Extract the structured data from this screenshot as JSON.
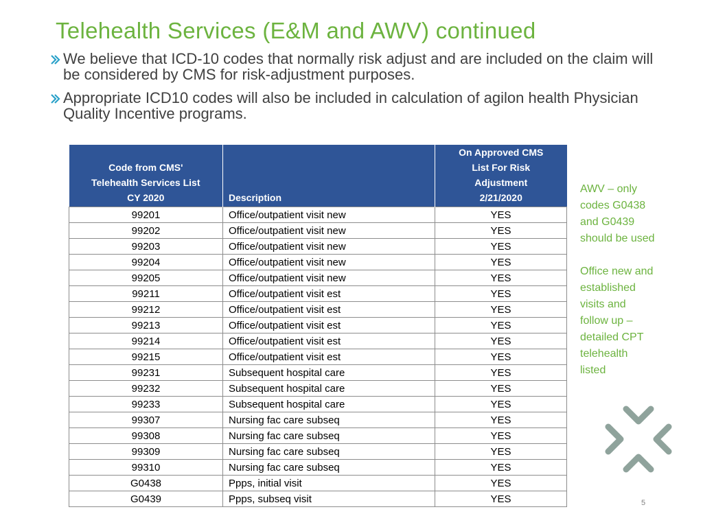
{
  "slide": {
    "title": "Telehealth Services (E&M and AWV) continued",
    "bullets": [
      "We believe that ICD-10 codes that normally risk adjust and are included on the claim will be considered by CMS for risk-adjustment purposes.",
      "Appropriate ICD10 codes will also be included in calculation of agilon health Physician Quality Incentive programs."
    ],
    "page_number": "5"
  },
  "table": {
    "headers": {
      "code": [
        "Code from CMS'",
        "Telehealth Services List",
        "CY 2020"
      ],
      "description": "Description",
      "approved": [
        "On Approved CMS",
        "List For Risk",
        "Adjustment",
        "2/21/2020"
      ]
    },
    "rows": [
      {
        "code": "99201",
        "description": "Office/outpatient visit new",
        "approved": "YES"
      },
      {
        "code": "99202",
        "description": "Office/outpatient visit new",
        "approved": "YES"
      },
      {
        "code": "99203",
        "description": "Office/outpatient visit new",
        "approved": "YES"
      },
      {
        "code": "99204",
        "description": "Office/outpatient visit new",
        "approved": "YES"
      },
      {
        "code": "99205",
        "description": "Office/outpatient visit new",
        "approved": "YES"
      },
      {
        "code": "99211",
        "description": "Office/outpatient visit est",
        "approved": "YES"
      },
      {
        "code": "99212",
        "description": "Office/outpatient visit est",
        "approved": "YES"
      },
      {
        "code": "99213",
        "description": "Office/outpatient visit est",
        "approved": "YES"
      },
      {
        "code": "99214",
        "description": "Office/outpatient visit est",
        "approved": "YES"
      },
      {
        "code": "99215",
        "description": "Office/outpatient visit est",
        "approved": "YES"
      },
      {
        "code": "99231",
        "description": "Subsequent hospital care",
        "approved": "YES"
      },
      {
        "code": "99232",
        "description": "Subsequent hospital care",
        "approved": "YES"
      },
      {
        "code": "99233",
        "description": "Subsequent hospital care",
        "approved": "YES"
      },
      {
        "code": "99307",
        "description": "Nursing fac care subseq",
        "approved": "YES"
      },
      {
        "code": "99308",
        "description": "Nursing fac care subseq",
        "approved": "YES"
      },
      {
        "code": "99309",
        "description": "Nursing fac care subseq",
        "approved": "YES"
      },
      {
        "code": "99310",
        "description": "Nursing fac care subseq",
        "approved": "YES"
      },
      {
        "code": "G0438",
        "description": "Ppps, initial visit",
        "approved": "YES"
      },
      {
        "code": "G0439",
        "description": "Ppps, subseq visit",
        "approved": "YES"
      }
    ]
  },
  "side_notes": [
    [
      "AWV – only",
      "codes G0438",
      "and G0439",
      "should be used"
    ],
    [
      "Office new and",
      "established",
      "visits and",
      "follow up –",
      "detailed CPT",
      "telehealth",
      "listed"
    ]
  ],
  "icons": {
    "bullet": "chevron-right-icon",
    "logo": "agilon-health-logo-icon"
  },
  "colors": {
    "title": "#6cb33f",
    "table_header": "#2f5597",
    "side_notes": "#6cb33f",
    "bullet_chevron": "#2aa1c9",
    "logo": "#8fa39c"
  }
}
